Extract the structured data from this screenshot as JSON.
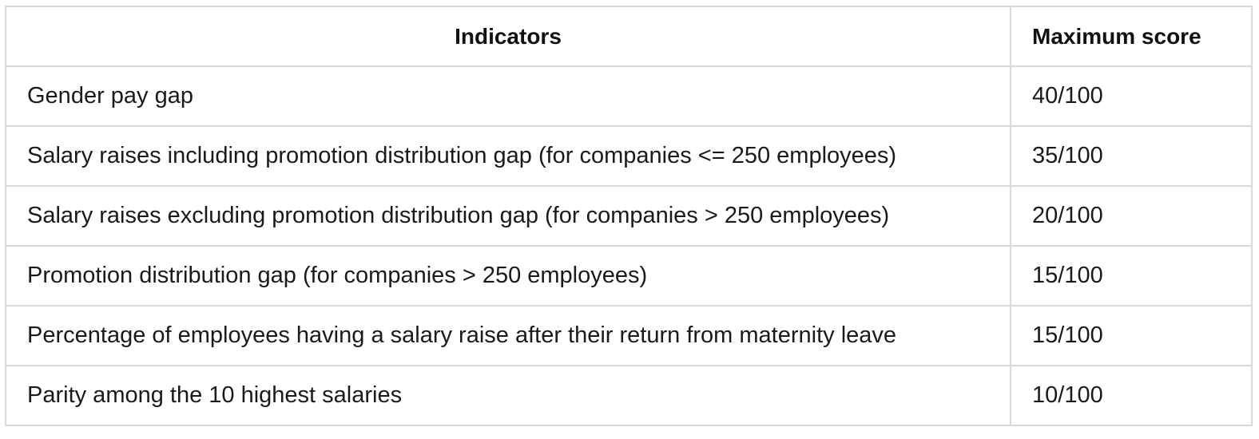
{
  "table": {
    "headers": [
      "Indicators",
      "Maximum score"
    ],
    "rows": [
      [
        "Gender pay gap",
        "40/100"
      ],
      [
        "Salary raises including promotion distribution gap (for companies <= 250 employees)",
        "35/100"
      ],
      [
        "Salary raises excluding promotion distribution gap (for companies > 250 employees)",
        "20/100"
      ],
      [
        "Promotion distribution gap (for companies > 250 employees)",
        "15/100"
      ],
      [
        "Percentage of employees having a salary raise after their return from maternity leave",
        "15/100"
      ],
      [
        "Parity among the 10 highest salaries",
        "10/100"
      ]
    ]
  }
}
